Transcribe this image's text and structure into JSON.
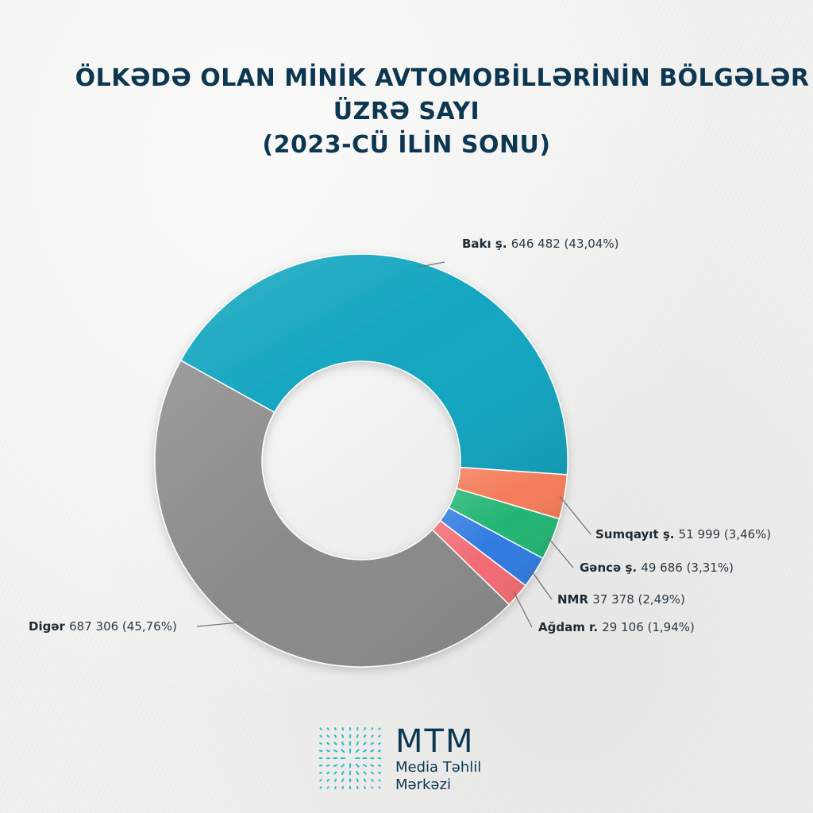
{
  "title": {
    "line1": "ÖLKƏDƏ OLAN MİNİK AVTOMOBİLLƏRİNİN BÖLGƏLƏR",
    "line2": "ÜZRƏ SAYI",
    "line3": "(2023-CÜ İLİN SONU)"
  },
  "chart_data": {
    "type": "pie",
    "variant": "donut",
    "title": "ÖLKƏDƏ OLAN MİNİK AVTOMOBİLLƏRİNİN BÖLGƏLƏR ÜZRƏ SAYI (2023-CÜ İLİN SONU)",
    "slices": [
      {
        "label": "Bakı ş.",
        "value": 646482,
        "value_text": "646 482",
        "percent": 43.04,
        "percent_text": "(43,04%)",
        "color": "#12a5c0"
      },
      {
        "label": "Sumqayıt ş.",
        "value": 51999,
        "value_text": "51 999",
        "percent": 3.46,
        "percent_text": "(3,46%)",
        "color": "#f47c5a"
      },
      {
        "label": "Gəncə ş.",
        "value": 49686,
        "value_text": "49 686",
        "percent": 3.31,
        "percent_text": "(3,31%)",
        "color": "#22b573"
      },
      {
        "label": "NMR",
        "value": 37378,
        "value_text": "37 378",
        "percent": 2.49,
        "percent_text": "(2,49%)",
        "color": "#2f7be0"
      },
      {
        "label": "Ağdam r.",
        "value": 29106,
        "value_text": "29 106",
        "percent": 1.94,
        "percent_text": "(1,94%)",
        "color": "#f26b73"
      },
      {
        "label": "Digər",
        "value": 687306,
        "value_text": "687 306",
        "percent": 45.76,
        "percent_text": "(45,76%)",
        "color": "#8a8a8a"
      }
    ]
  },
  "logo": {
    "brand": "MTM",
    "line1": "Media Təhlil",
    "line2": "Mərkəzi",
    "color": "#0d3650",
    "accent": "#2bb8c8"
  }
}
